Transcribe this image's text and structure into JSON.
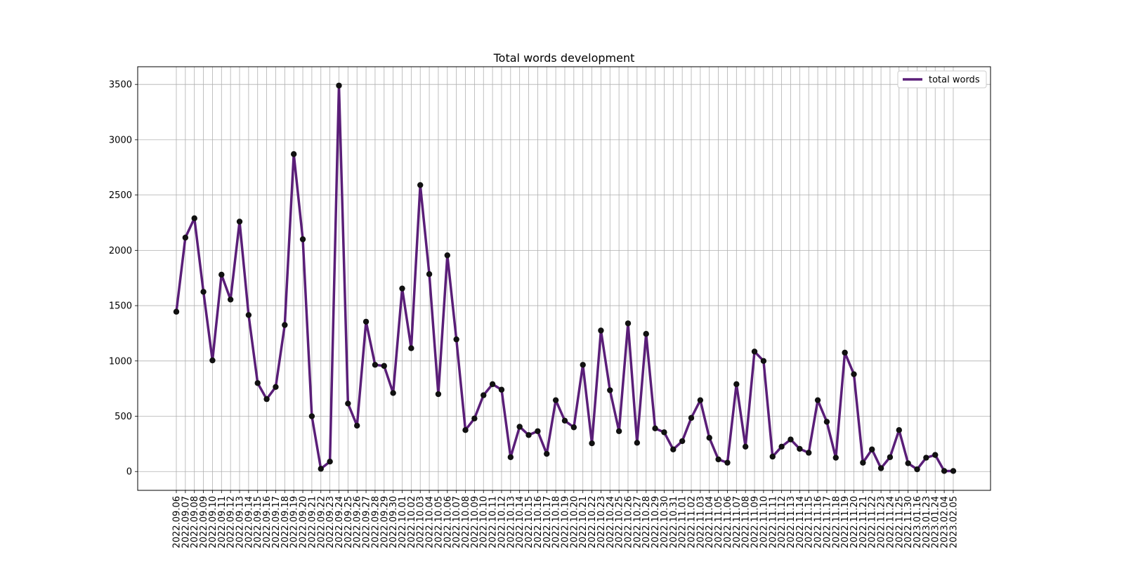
{
  "chart_data": {
    "type": "line",
    "title": "Total words development",
    "xlabel": "",
    "ylabel": "",
    "ylim": [
      -170,
      3660
    ],
    "yticks": [
      0,
      500,
      1000,
      1500,
      2000,
      2500,
      3000,
      3500
    ],
    "grid": true,
    "legend_position": "top-right",
    "line_color": "#5a1e78",
    "marker_color": "#111111",
    "categories": [
      "2022.09.06",
      "2022.09.07",
      "2022.09.08",
      "2022.09.09",
      "2022.09.10",
      "2022.09.11",
      "2022.09.12",
      "2022.09.13",
      "2022.09.14",
      "2022.09.15",
      "2022.09.16",
      "2022.09.17",
      "2022.09.18",
      "2022.09.19",
      "2022.09.20",
      "2022.09.21",
      "2022.09.22",
      "2022.09.23",
      "2022.09.24",
      "2022.09.25",
      "2022.09.26",
      "2022.09.27",
      "2022.09.28",
      "2022.09.29",
      "2022.09.30",
      "2022.10.01",
      "2022.10.02",
      "2022.10.03",
      "2022.10.04",
      "2022.10.05",
      "2022.10.06",
      "2022.10.07",
      "2022.10.08",
      "2022.10.09",
      "2022.10.10",
      "2022.10.11",
      "2022.10.12",
      "2022.10.13",
      "2022.10.14",
      "2022.10.15",
      "2022.10.16",
      "2022.10.17",
      "2022.10.18",
      "2022.10.19",
      "2022.10.20",
      "2022.10.21",
      "2022.10.22",
      "2022.10.23",
      "2022.10.24",
      "2022.10.25",
      "2022.10.26",
      "2022.10.27",
      "2022.10.28",
      "2022.10.29",
      "2022.10.30",
      "2022.10.31",
      "2022.11.01",
      "2022.11.02",
      "2022.11.03",
      "2022.11.04",
      "2022.11.05",
      "2022.11.06",
      "2022.11.07",
      "2022.11.08",
      "2022.11.09",
      "2022.11.10",
      "2022.11.11",
      "2022.11.12",
      "2022.11.13",
      "2022.11.14",
      "2022.11.15",
      "2022.11.16",
      "2022.11.17",
      "2022.11.18",
      "2022.11.19",
      "2022.11.20",
      "2022.11.21",
      "2022.11.22",
      "2022.11.23",
      "2022.11.24",
      "2022.11.25",
      "2022.11.30",
      "2023.01.16",
      "2023.01.23",
      "2023.01.24",
      "2023.02.04",
      "2023.02.05"
    ],
    "series": [
      {
        "name": "total words",
        "values": [
          1445,
          2115,
          2290,
          1625,
          1005,
          1780,
          1555,
          2260,
          1415,
          800,
          655,
          765,
          1325,
          2870,
          2100,
          500,
          25,
          90,
          3490,
          615,
          415,
          1355,
          965,
          955,
          710,
          1655,
          1115,
          2590,
          1785,
          700,
          1955,
          1195,
          375,
          480,
          690,
          790,
          740,
          130,
          405,
          330,
          365,
          160,
          645,
          460,
          400,
          965,
          255,
          1275,
          735,
          365,
          1340,
          260,
          1245,
          390,
          355,
          200,
          275,
          485,
          645,
          305,
          110,
          80,
          790,
          225,
          1085,
          1000,
          135,
          225,
          290,
          205,
          170,
          645,
          450,
          125,
          1075,
          880,
          80,
          200,
          30,
          130,
          375,
          75,
          20,
          125,
          150,
          5,
          5
        ]
      }
    ]
  }
}
